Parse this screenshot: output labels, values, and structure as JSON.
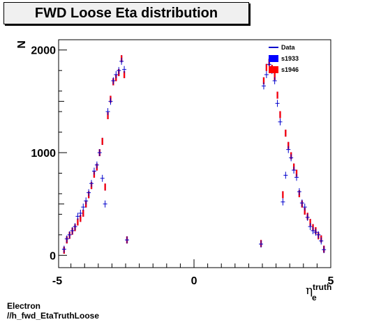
{
  "chart_data": {
    "type": "scatter",
    "title": "FWD Loose Eta distribution",
    "ylabel": "N",
    "xlabel_main": "η",
    "xlabel_sub": "e",
    "xlabel_sup": "truth",
    "xlim": [
      -4.95,
      5.0
    ],
    "ylim": [
      -120,
      2100
    ],
    "x_ticks": [
      -5,
      0,
      5
    ],
    "y_ticks": [
      0,
      1000,
      2000
    ],
    "legend": {
      "placement": "top-right",
      "entries": [
        {
          "label": "Data",
          "color": "#0000cc",
          "kind": "line"
        },
        {
          "label": "s1933",
          "color": "#0000ff",
          "kind": "box"
        },
        {
          "label": "s1946",
          "color": "#ff0000",
          "kind": "box"
        }
      ]
    },
    "series": [
      {
        "name": "s1933",
        "color": "#0000ff",
        "points": [
          [
            -4.75,
            50
          ],
          [
            -4.65,
            150
          ],
          [
            -4.55,
            195
          ],
          [
            -4.45,
            235
          ],
          [
            -4.35,
            270
          ],
          [
            -4.25,
            325
          ],
          [
            -4.15,
            360
          ],
          [
            -4.05,
            410
          ],
          [
            -3.95,
            500
          ],
          [
            -3.85,
            590
          ],
          [
            -3.75,
            680
          ],
          [
            -3.65,
            790
          ],
          [
            -3.55,
            860
          ],
          [
            -3.45,
            1000
          ],
          [
            -3.35,
            1110
          ],
          [
            -3.25,
            665
          ],
          [
            -3.15,
            1360
          ],
          [
            -3.05,
            1520
          ],
          [
            -2.95,
            1690
          ],
          [
            -2.85,
            1730
          ],
          [
            -2.75,
            1780
          ],
          [
            -2.65,
            1915
          ],
          [
            -2.55,
            1760
          ],
          [
            -2.45,
            150
          ],
          [
            2.45,
            115
          ],
          [
            2.55,
            1700
          ],
          [
            2.65,
            1830
          ],
          [
            2.75,
            1880
          ],
          [
            2.85,
            1820
          ],
          [
            2.95,
            1740
          ],
          [
            3.05,
            1560
          ],
          [
            3.15,
            1370
          ],
          [
            3.25,
            590
          ],
          [
            3.35,
            1190
          ],
          [
            3.45,
            1070
          ],
          [
            3.55,
            970
          ],
          [
            3.65,
            860
          ],
          [
            3.75,
            800
          ],
          [
            3.85,
            600
          ],
          [
            3.95,
            500
          ],
          [
            4.05,
            430
          ],
          [
            4.15,
            380
          ],
          [
            4.25,
            320
          ],
          [
            4.35,
            270
          ],
          [
            4.45,
            240
          ],
          [
            4.55,
            190
          ],
          [
            4.65,
            160
          ],
          [
            4.75,
            60
          ]
        ]
      },
      {
        "name": "s1946",
        "color": "#ff0000",
        "points": [
          [
            -4.75,
            50
          ],
          [
            -4.65,
            150
          ],
          [
            -4.55,
            195
          ],
          [
            -4.45,
            235
          ],
          [
            -4.35,
            270
          ],
          [
            -4.25,
            325
          ],
          [
            -4.15,
            360
          ],
          [
            -4.05,
            410
          ],
          [
            -3.95,
            500
          ],
          [
            -3.85,
            590
          ],
          [
            -3.75,
            680
          ],
          [
            -3.65,
            790
          ],
          [
            -3.55,
            860
          ],
          [
            -3.45,
            1000
          ],
          [
            -3.35,
            1110
          ],
          [
            -3.25,
            665
          ],
          [
            -3.15,
            1360
          ],
          [
            -3.05,
            1520
          ],
          [
            -2.95,
            1690
          ],
          [
            -2.85,
            1730
          ],
          [
            -2.75,
            1780
          ],
          [
            -2.65,
            1915
          ],
          [
            -2.55,
            1760
          ],
          [
            -2.45,
            150
          ],
          [
            2.45,
            115
          ],
          [
            2.55,
            1700
          ],
          [
            2.65,
            1830
          ],
          [
            2.75,
            1880
          ],
          [
            2.85,
            1820
          ],
          [
            2.95,
            1740
          ],
          [
            3.05,
            1560
          ],
          [
            3.15,
            1370
          ],
          [
            3.25,
            590
          ],
          [
            3.35,
            1190
          ],
          [
            3.45,
            1070
          ],
          [
            3.55,
            970
          ],
          [
            3.65,
            860
          ],
          [
            3.75,
            800
          ],
          [
            3.85,
            600
          ],
          [
            3.95,
            500
          ],
          [
            4.05,
            430
          ],
          [
            4.15,
            380
          ],
          [
            4.25,
            320
          ],
          [
            4.35,
            270
          ],
          [
            4.45,
            240
          ],
          [
            4.55,
            190
          ],
          [
            4.65,
            160
          ],
          [
            4.75,
            60
          ]
        ]
      },
      {
        "name": "Data",
        "color": "#0000cc",
        "points": [
          [
            -4.75,
            60
          ],
          [
            -4.65,
            160
          ],
          [
            -4.55,
            200
          ],
          [
            -4.45,
            240
          ],
          [
            -4.35,
            280
          ],
          [
            -4.25,
            380
          ],
          [
            -4.15,
            410
          ],
          [
            -4.05,
            470
          ],
          [
            -3.95,
            530
          ],
          [
            -3.85,
            610
          ],
          [
            -3.75,
            700
          ],
          [
            -3.65,
            820
          ],
          [
            -3.55,
            880
          ],
          [
            -3.45,
            1000
          ],
          [
            -3.35,
            750
          ],
          [
            -3.25,
            500
          ],
          [
            -3.15,
            1400
          ],
          [
            -3.05,
            1500
          ],
          [
            -2.95,
            1700
          ],
          [
            -2.85,
            1760
          ],
          [
            -2.75,
            1800
          ],
          [
            -2.65,
            1890
          ],
          [
            -2.55,
            1810
          ],
          [
            -2.45,
            150
          ],
          [
            2.45,
            110
          ],
          [
            2.55,
            1650
          ],
          [
            2.65,
            1760
          ],
          [
            2.75,
            1860
          ],
          [
            2.85,
            1800
          ],
          [
            2.95,
            1700
          ],
          [
            3.05,
            1480
          ],
          [
            3.15,
            1300
          ],
          [
            3.25,
            520
          ],
          [
            3.35,
            780
          ],
          [
            3.45,
            1030
          ],
          [
            3.55,
            950
          ],
          [
            3.65,
            830
          ],
          [
            3.75,
            760
          ],
          [
            3.85,
            620
          ],
          [
            3.95,
            510
          ],
          [
            4.05,
            470
          ],
          [
            4.15,
            370
          ],
          [
            4.25,
            280
          ],
          [
            4.35,
            240
          ],
          [
            4.45,
            225
          ],
          [
            4.55,
            200
          ],
          [
            4.65,
            140
          ],
          [
            4.75,
            55
          ]
        ]
      }
    ]
  },
  "footer": {
    "line1": "Electron",
    "line2": "//h_fwd_EtaTruthLoose"
  }
}
